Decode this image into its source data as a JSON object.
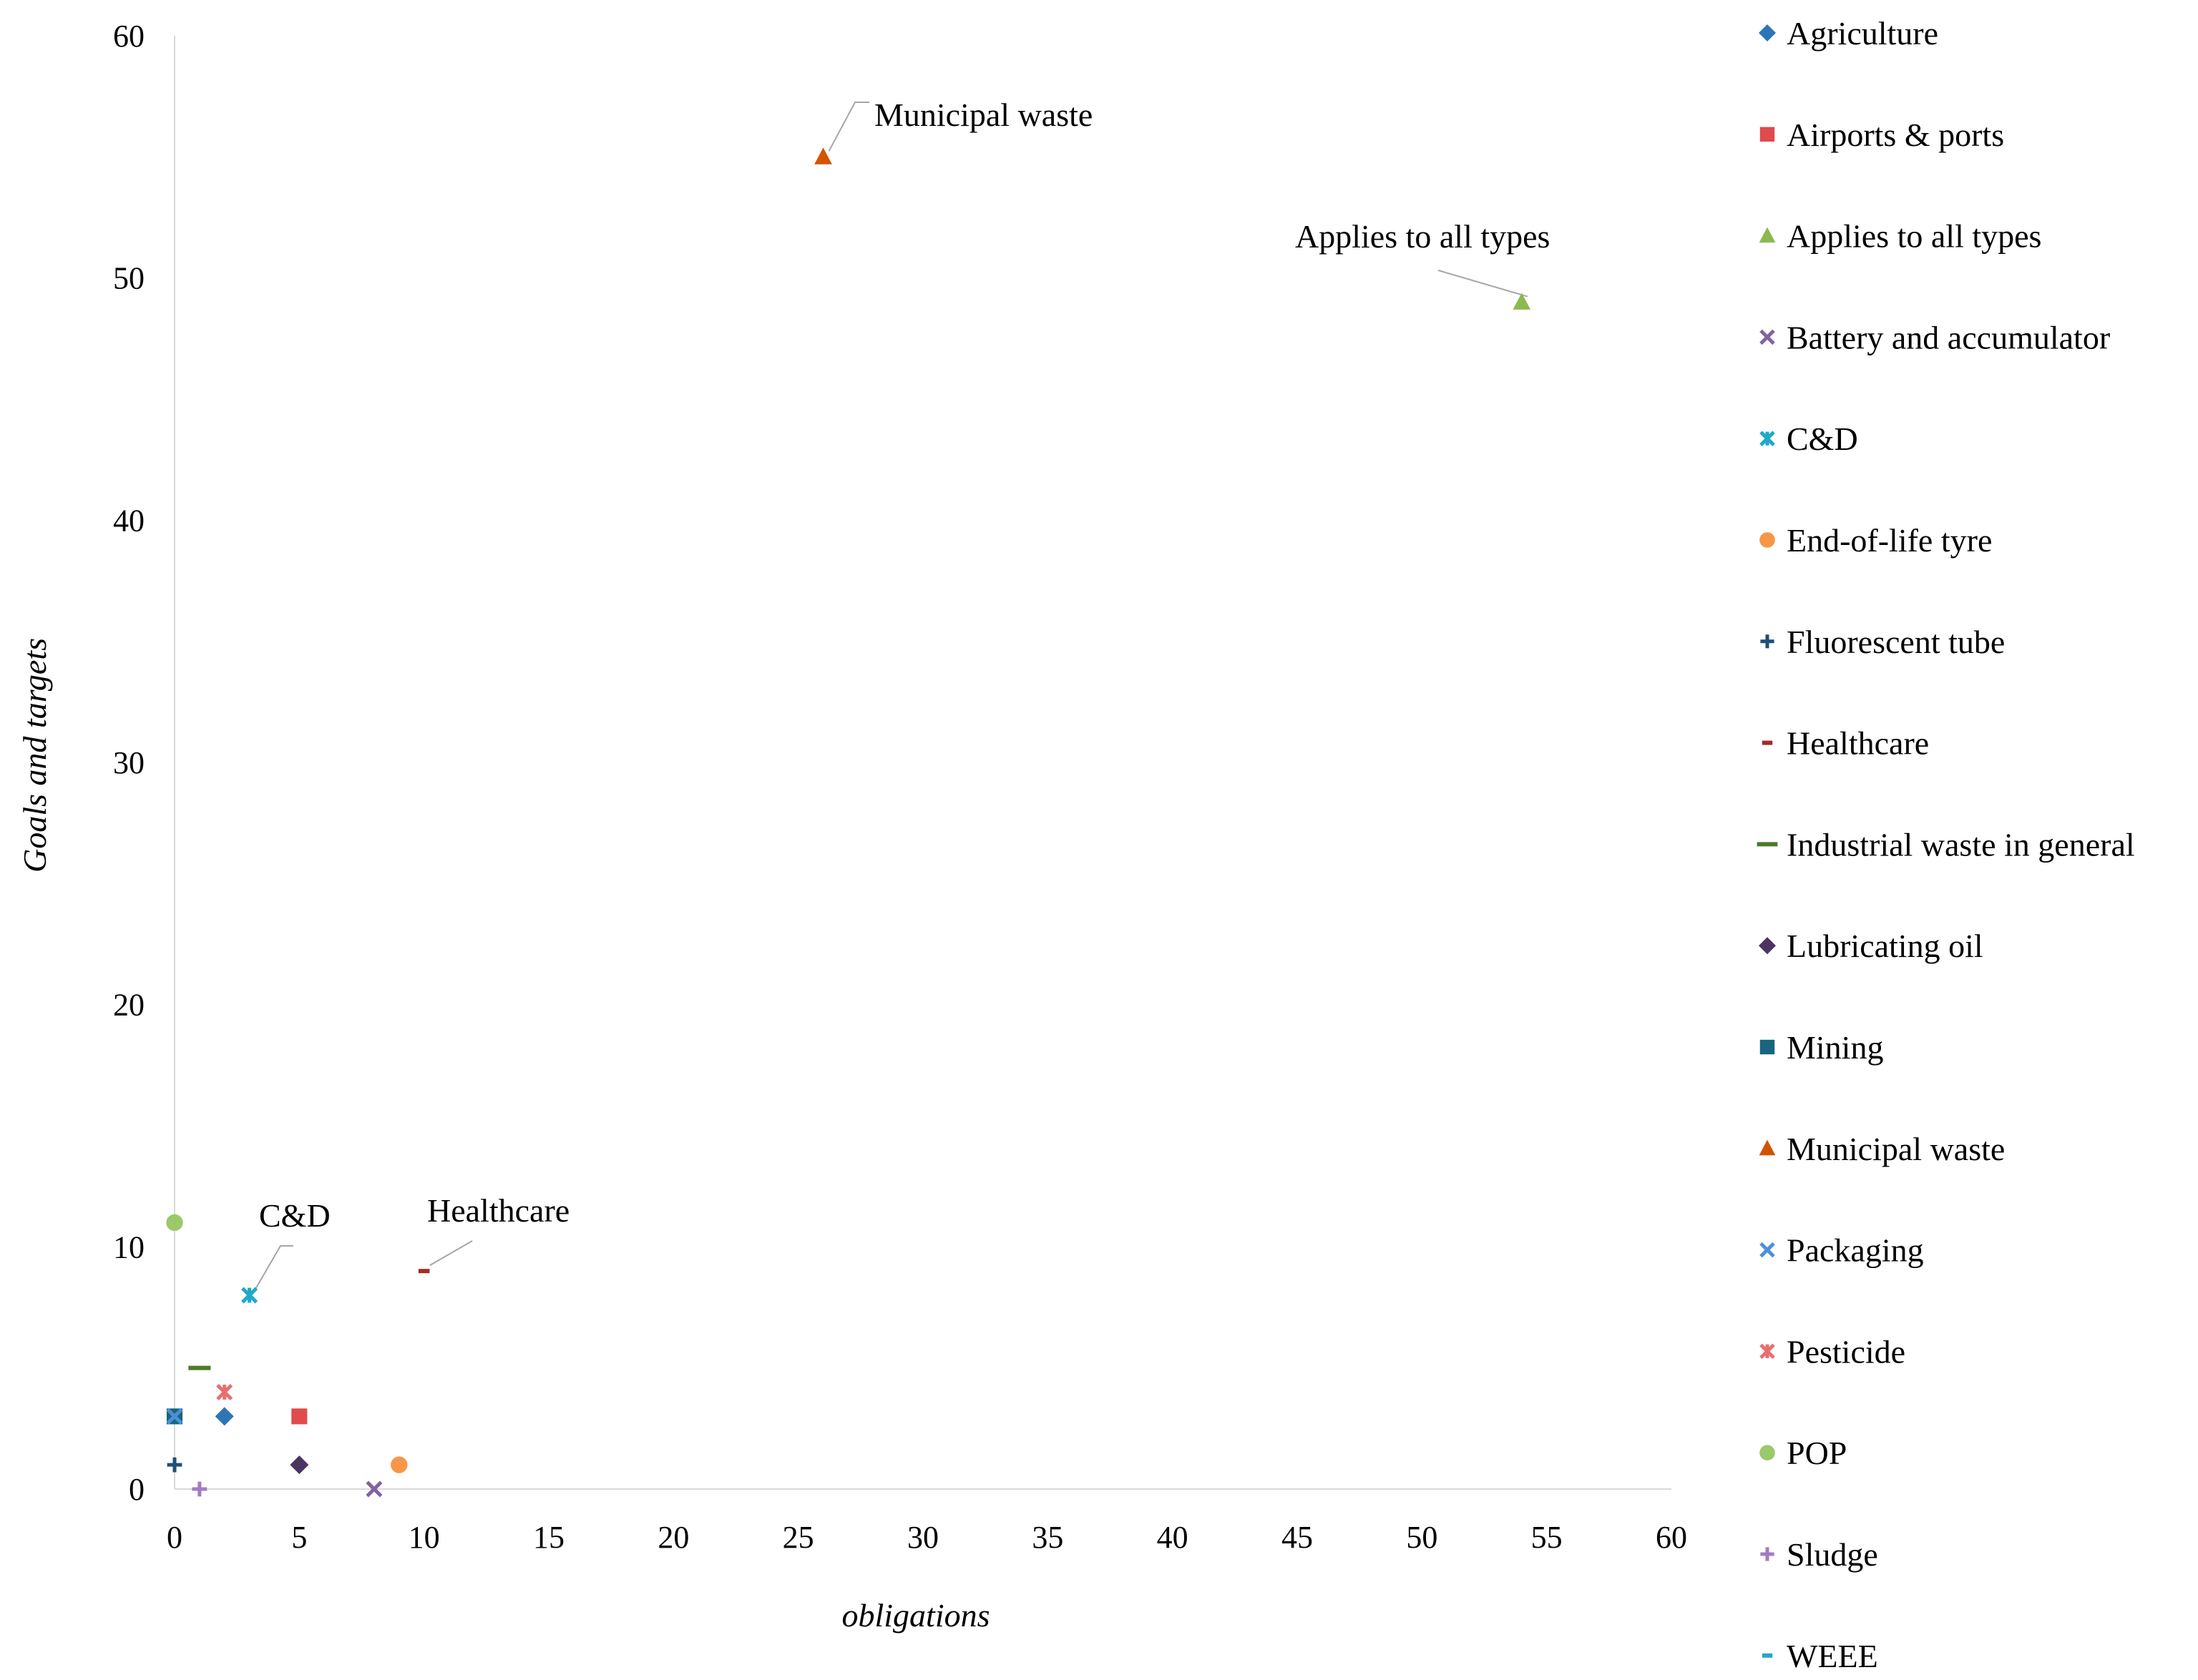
{
  "chart_data": {
    "type": "scatter",
    "title": "",
    "xlabel": "obligations",
    "ylabel": "Goals and  targets",
    "xlim": [
      0,
      60
    ],
    "ylim": [
      0,
      60
    ],
    "x_ticks": [
      0,
      5,
      10,
      15,
      20,
      25,
      30,
      35,
      40,
      45,
      50,
      55,
      60
    ],
    "y_ticks": [
      0,
      10,
      20,
      30,
      40,
      50,
      60
    ],
    "grid": false,
    "legend_position": "right",
    "series": [
      {
        "name": "Agriculture",
        "marker": "diamond",
        "color": "#2E75B6",
        "points": [
          {
            "x": 2,
            "y": 3
          }
        ]
      },
      {
        "name": "Airports & ports",
        "marker": "square",
        "color": "#E04B4B",
        "points": [
          {
            "x": 5,
            "y": 3
          }
        ]
      },
      {
        "name": "Applies to all types",
        "marker": "triangle",
        "color": "#8DB94E",
        "points": [
          {
            "x": 54,
            "y": 49
          }
        ]
      },
      {
        "name": "Battery and accumulator",
        "marker": "x",
        "color": "#8064A2",
        "points": [
          {
            "x": 8,
            "y": 0
          }
        ]
      },
      {
        "name": "C&D",
        "marker": "asterisk",
        "color": "#1FA9C9",
        "points": [
          {
            "x": 3,
            "y": 8
          }
        ]
      },
      {
        "name": "End-of-life tyre",
        "marker": "circle",
        "color": "#F79646",
        "points": [
          {
            "x": 9,
            "y": 1
          }
        ]
      },
      {
        "name": "Fluorescent tube",
        "marker": "plus",
        "color": "#1F4E79",
        "points": [
          {
            "x": 0,
            "y": 1
          }
        ]
      },
      {
        "name": "Healthcare",
        "marker": "dash-small",
        "color": "#A52A2A",
        "points": [
          {
            "x": 10,
            "y": 9
          }
        ]
      },
      {
        "name": "Industrial waste in general",
        "marker": "dash",
        "color": "#4F7A28",
        "points": [
          {
            "x": 1,
            "y": 5
          }
        ]
      },
      {
        "name": "Lubricating oil",
        "marker": "diamond",
        "color": "#4B3463",
        "points": [
          {
            "x": 5,
            "y": 1
          }
        ]
      },
      {
        "name": "Mining",
        "marker": "square",
        "color": "#17657E",
        "points": [
          {
            "x": 0,
            "y": 3
          }
        ]
      },
      {
        "name": "Municipal waste",
        "marker": "triangle",
        "color": "#D35400",
        "points": [
          {
            "x": 26,
            "y": 55
          }
        ]
      },
      {
        "name": "Packaging",
        "marker": "x",
        "color": "#4A90D9",
        "points": [
          {
            "x": 0,
            "y": 3
          }
        ]
      },
      {
        "name": "Pesticide",
        "marker": "asterisk",
        "color": "#E86F6F",
        "points": [
          {
            "x": 2,
            "y": 4
          }
        ]
      },
      {
        "name": "POP",
        "marker": "circle",
        "color": "#9BC96A",
        "points": [
          {
            "x": 0,
            "y": 11
          }
        ]
      },
      {
        "name": "Sludge",
        "marker": "plus",
        "color": "#A07CC5",
        "points": [
          {
            "x": 1,
            "y": 0
          }
        ]
      },
      {
        "name": "WEEE",
        "marker": "dash-small",
        "color": "#1FA9C9",
        "points": []
      }
    ],
    "annotations": [
      {
        "text": "Municipal waste",
        "target": "Municipal waste"
      },
      {
        "text": "Applies to all types",
        "target": "Applies to all types"
      },
      {
        "text": "C&D",
        "target": "C&D"
      },
      {
        "text": "Healthcare",
        "target": "Healthcare"
      }
    ]
  }
}
